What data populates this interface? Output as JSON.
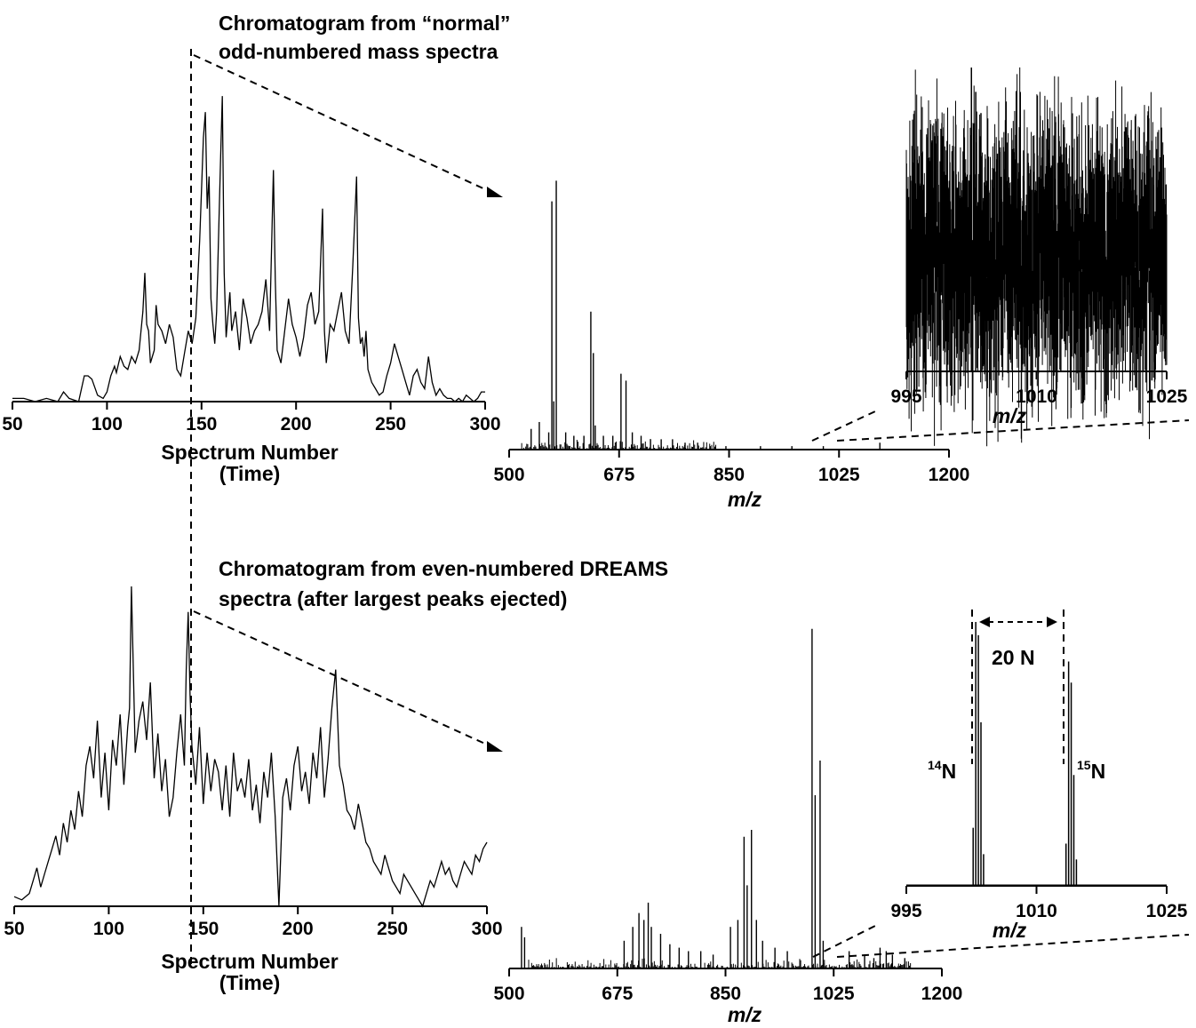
{
  "colors": {
    "line": "#000000",
    "background": "#ffffff"
  },
  "titles": {
    "top_line1": "Chromatogram from “normal”",
    "top_line2": "odd-numbered mass spectra",
    "bottom_line1": "Chromatogram from even-numbered DREAMS",
    "bottom_line2": "spectra (after largest peaks ejected)"
  },
  "chart_data": [
    {
      "id": "chromatogram_top",
      "type": "line",
      "title": "Chromatogram from “normal” odd-numbered mass spectra",
      "xlabel": "Spectrum Number",
      "xlabel_sub": "(Time)",
      "xlim": [
        50,
        300
      ],
      "ticks": [
        50,
        100,
        150,
        200,
        250,
        300
      ],
      "tick_labels": [
        "50",
        "100",
        "150",
        "200",
        "250",
        "300"
      ],
      "marker_x": 142,
      "x": [
        50,
        56,
        62,
        68,
        74,
        77,
        80,
        85,
        88,
        90,
        92,
        95,
        98,
        100,
        102,
        104,
        105,
        107,
        109,
        111,
        113,
        115,
        117,
        119,
        120,
        121,
        122,
        123,
        125,
        126,
        127,
        129,
        131,
        133,
        135,
        137,
        139,
        141,
        143,
        145,
        147,
        149,
        151,
        152,
        153,
        154,
        155,
        156,
        157,
        158,
        160,
        161,
        162,
        163,
        165,
        166,
        168,
        170,
        172,
        174,
        176,
        178,
        180,
        182,
        184,
        186,
        188,
        189,
        190,
        192,
        194,
        196,
        198,
        200,
        202,
        204,
        206,
        208,
        210,
        212,
        214,
        215,
        216,
        217,
        218,
        220,
        222,
        224,
        226,
        228,
        230,
        232,
        233,
        234,
        235,
        236,
        237,
        238,
        240,
        242,
        244,
        246,
        248,
        250,
        252,
        254,
        256,
        258,
        260,
        262,
        264,
        266,
        268,
        270,
        271,
        272,
        274,
        276,
        278,
        280,
        282,
        284,
        286,
        288,
        290,
        292,
        294,
        296,
        298,
        300
      ],
      "y": [
        1,
        1,
        0,
        1,
        0,
        3,
        1,
        0,
        8,
        8,
        7,
        2,
        1,
        3,
        8,
        11,
        9,
        14,
        11,
        10,
        14,
        12,
        16,
        28,
        40,
        24,
        22,
        12,
        16,
        30,
        24,
        22,
        18,
        24,
        20,
        10,
        8,
        15,
        22,
        18,
        26,
        50,
        82,
        90,
        60,
        70,
        32,
        24,
        18,
        28,
        74,
        95,
        40,
        20,
        34,
        22,
        28,
        16,
        32,
        26,
        18,
        22,
        24,
        28,
        38,
        22,
        72,
        38,
        16,
        12,
        22,
        32,
        24,
        20,
        14,
        20,
        30,
        34,
        24,
        28,
        60,
        22,
        12,
        18,
        24,
        22,
        28,
        34,
        22,
        18,
        42,
        70,
        26,
        18,
        20,
        14,
        22,
        10,
        6,
        4,
        2,
        3,
        8,
        12,
        18,
        14,
        10,
        6,
        2,
        8,
        10,
        6,
        4,
        14,
        10,
        6,
        2,
        4,
        2,
        1,
        1,
        0,
        1,
        0,
        2,
        1,
        0,
        1,
        3,
        3
      ],
      "ylim": [
        0,
        100
      ]
    },
    {
      "id": "spectrum_top",
      "type": "bar",
      "xlabel": "m/z",
      "xlim": [
        500,
        1200
      ],
      "ticks": [
        500,
        675,
        850,
        1025,
        1200
      ],
      "tick_labels": [
        "500",
        "675",
        "850",
        "1025",
        "1200"
      ],
      "ylim": [
        0,
        100
      ],
      "peaks": [
        [
          535,
          6
        ],
        [
          548,
          8
        ],
        [
          563,
          5
        ],
        [
          568,
          72
        ],
        [
          571,
          14
        ],
        [
          575,
          78
        ],
        [
          590,
          5
        ],
        [
          603,
          4
        ],
        [
          619,
          4
        ],
        [
          630,
          40
        ],
        [
          634,
          28
        ],
        [
          637,
          7
        ],
        [
          650,
          4
        ],
        [
          665,
          4
        ],
        [
          678,
          22
        ],
        [
          686,
          20
        ],
        [
          696,
          5
        ],
        [
          710,
          4
        ],
        [
          725,
          3
        ],
        [
          742,
          3
        ],
        [
          760,
          3
        ],
        [
          780,
          2
        ],
        [
          800,
          2
        ],
        [
          820,
          1
        ],
        [
          845,
          1
        ],
        [
          900,
          1
        ],
        [
          950,
          1
        ],
        [
          1000,
          1
        ],
        [
          1090,
          2
        ]
      ],
      "noise_range": [
        520,
        830
      ]
    },
    {
      "id": "inset_top",
      "type": "line",
      "xlabel": "m/z",
      "xlim": [
        995,
        1025
      ],
      "ticks": [
        995,
        1010,
        1025
      ],
      "tick_labels": [
        "995",
        "1010",
        "1025"
      ],
      "ylim": [
        0,
        100
      ],
      "description_level": "dense noise",
      "peaks": [
        [
          1002.5,
          100
        ],
        [
          1003.0,
          92
        ],
        [
          1003.6,
          85
        ],
        [
          1004.1,
          70
        ],
        [
          1012.2,
          82
        ],
        [
          1012.8,
          74
        ]
      ]
    },
    {
      "id": "chromatogram_bottom",
      "type": "line",
      "title": "Chromatogram from even-numbered DREAMS spectra (after largest peaks ejected)",
      "xlabel": "Spectrum Number",
      "xlabel_sub": "(Time)",
      "xlim": [
        50,
        300
      ],
      "ticks": [
        50,
        100,
        150,
        200,
        250,
        300
      ],
      "tick_labels": [
        "50",
        "100",
        "150",
        "200",
        "250",
        "300"
      ],
      "marker_x": 142,
      "x": [
        50,
        54,
        58,
        60,
        62,
        64,
        66,
        68,
        70,
        72,
        74,
        76,
        78,
        80,
        82,
        84,
        86,
        88,
        90,
        92,
        94,
        96,
        98,
        100,
        102,
        104,
        106,
        108,
        110,
        111,
        112,
        114,
        116,
        118,
        120,
        122,
        124,
        126,
        128,
        130,
        132,
        134,
        136,
        138,
        140,
        141,
        142,
        143,
        144,
        146,
        148,
        150,
        152,
        154,
        156,
        158,
        160,
        162,
        164,
        166,
        168,
        170,
        172,
        174,
        176,
        178,
        180,
        182,
        184,
        186,
        188,
        190,
        192,
        194,
        196,
        198,
        200,
        202,
        204,
        206,
        208,
        210,
        212,
        214,
        216,
        218,
        220,
        222,
        224,
        226,
        228,
        230,
        232,
        234,
        236,
        238,
        240,
        242,
        244,
        246,
        248,
        250,
        252,
        254,
        256,
        258,
        260,
        262,
        264,
        266,
        268,
        270,
        272,
        274,
        276,
        278,
        280,
        282,
        284,
        286,
        288,
        290,
        292,
        294,
        296,
        298,
        300
      ],
      "y": [
        3,
        2,
        4,
        8,
        12,
        6,
        10,
        14,
        18,
        22,
        16,
        26,
        20,
        30,
        24,
        36,
        28,
        44,
        50,
        40,
        58,
        34,
        48,
        30,
        52,
        44,
        60,
        38,
        56,
        62,
        100,
        48,
        58,
        64,
        52,
        70,
        40,
        54,
        36,
        46,
        28,
        34,
        48,
        60,
        44,
        74,
        92,
        66,
        50,
        38,
        56,
        32,
        48,
        36,
        46,
        42,
        30,
        44,
        28,
        48,
        36,
        40,
        34,
        46,
        30,
        38,
        26,
        42,
        34,
        48,
        28,
        0,
        34,
        40,
        30,
        44,
        50,
        36,
        42,
        32,
        48,
        40,
        56,
        34,
        46,
        62,
        74,
        44,
        38,
        30,
        28,
        24,
        32,
        26,
        20,
        18,
        14,
        12,
        10,
        16,
        12,
        8,
        6,
        4,
        10,
        8,
        6,
        4,
        2,
        0,
        4,
        8,
        6,
        10,
        14,
        10,
        12,
        8,
        6,
        10,
        14,
        12,
        10,
        16,
        14,
        18,
        20
      ],
      "ylim": [
        0,
        100
      ]
    },
    {
      "id": "spectrum_bottom",
      "type": "bar",
      "xlabel": "m/z",
      "xlim": [
        500,
        1200
      ],
      "ticks": [
        500,
        675,
        850,
        1025,
        1200
      ],
      "tick_labels": [
        "500",
        "675",
        "850",
        "1025",
        "1200"
      ],
      "ylim": [
        0,
        100
      ],
      "peaks": [
        [
          520,
          12
        ],
        [
          525,
          9
        ],
        [
          686,
          8
        ],
        [
          700,
          12
        ],
        [
          710,
          16
        ],
        [
          718,
          14
        ],
        [
          725,
          19
        ],
        [
          730,
          12
        ],
        [
          745,
          10
        ],
        [
          760,
          7
        ],
        [
          775,
          6
        ],
        [
          790,
          5
        ],
        [
          810,
          5
        ],
        [
          830,
          4
        ],
        [
          858,
          12
        ],
        [
          870,
          14
        ],
        [
          880,
          38
        ],
        [
          885,
          24
        ],
        [
          892,
          40
        ],
        [
          900,
          14
        ],
        [
          910,
          8
        ],
        [
          930,
          6
        ],
        [
          950,
          5
        ],
        [
          990,
          98
        ],
        [
          995,
          50
        ],
        [
          1003,
          60
        ],
        [
          1008,
          8
        ],
        [
          1050,
          5
        ],
        [
          1075,
          4
        ],
        [
          1090,
          3
        ],
        [
          1100,
          6
        ],
        [
          1110,
          5
        ],
        [
          1120,
          4
        ],
        [
          1140,
          3
        ]
      ],
      "noise_range": [
        530,
        1150
      ]
    },
    {
      "id": "inset_bottom",
      "type": "bar",
      "xlabel": "m/z",
      "xlim": [
        995,
        1025
      ],
      "ticks": [
        995,
        1010,
        1025
      ],
      "tick_labels": [
        "995",
        "1010",
        "1025"
      ],
      "ylim": [
        0,
        100
      ],
      "peaks": [
        [
          1002.7,
          22
        ],
        [
          1003.0,
          100
        ],
        [
          1003.3,
          95
        ],
        [
          1003.6,
          62
        ],
        [
          1003.9,
          12
        ],
        [
          1013.4,
          16
        ],
        [
          1013.7,
          85
        ],
        [
          1014.0,
          77
        ],
        [
          1014.3,
          42
        ],
        [
          1014.6,
          10
        ]
      ],
      "labels": {
        "left": "14",
        "left_suffix": "N",
        "right": "15",
        "right_suffix": "N",
        "gap": "20 N"
      }
    }
  ]
}
